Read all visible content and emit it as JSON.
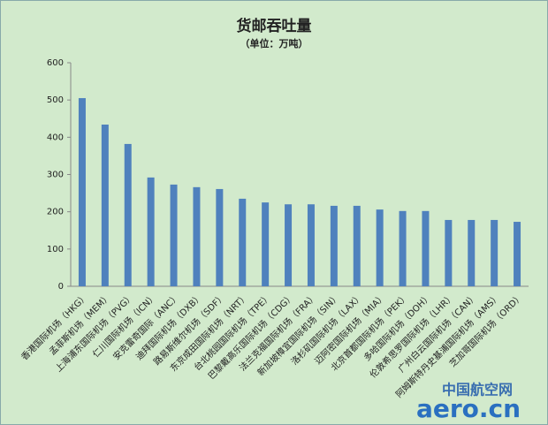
{
  "chart_data": {
    "type": "bar",
    "title": "货邮吞吐量",
    "subtitle": "（单位：万吨）",
    "categories": [
      "香港国际机场（HKG）",
      "孟菲斯机场（MEM）",
      "上海浦东国际机场（PVG）",
      "仁川国际机场（ICN）",
      "安克雷奇国际（ANC）",
      "迪拜国际机场（DXB）",
      "路易斯维尔机场（SDF）",
      "东京成田国际机场（NRT）",
      "台北桃园国际机场（TPE）",
      "巴黎戴高乐国际机场（CDG）",
      "法兰克福国际机场（FRA）",
      "新加坡樟宜国际机场（SIN）",
      "洛杉矶国际机场（LAX）",
      "迈阿密国际机场（MIA）",
      "北京首都国际机场（PEK）",
      "多哈国际机场（DOH）",
      "伦敦希思罗国际机场（LHR）",
      "广州白云国际机场（CAN）",
      "阿姆斯特丹史基浦国际机场（AMS）",
      "芝加哥国际机场（ORD）"
    ],
    "values": [
      505,
      434,
      382,
      292,
      273,
      266,
      261,
      235,
      225,
      220,
      220,
      216,
      216,
      206,
      202,
      202,
      178,
      178,
      178,
      173
    ],
    "color": "#4f81bd",
    "ylim": [
      0,
      600
    ],
    "yticks": [
      0,
      100,
      200,
      300,
      400,
      500,
      600
    ],
    "grid": false
  },
  "watermark": {
    "site_name": "中国航空网",
    "domain": "aero.cn"
  }
}
